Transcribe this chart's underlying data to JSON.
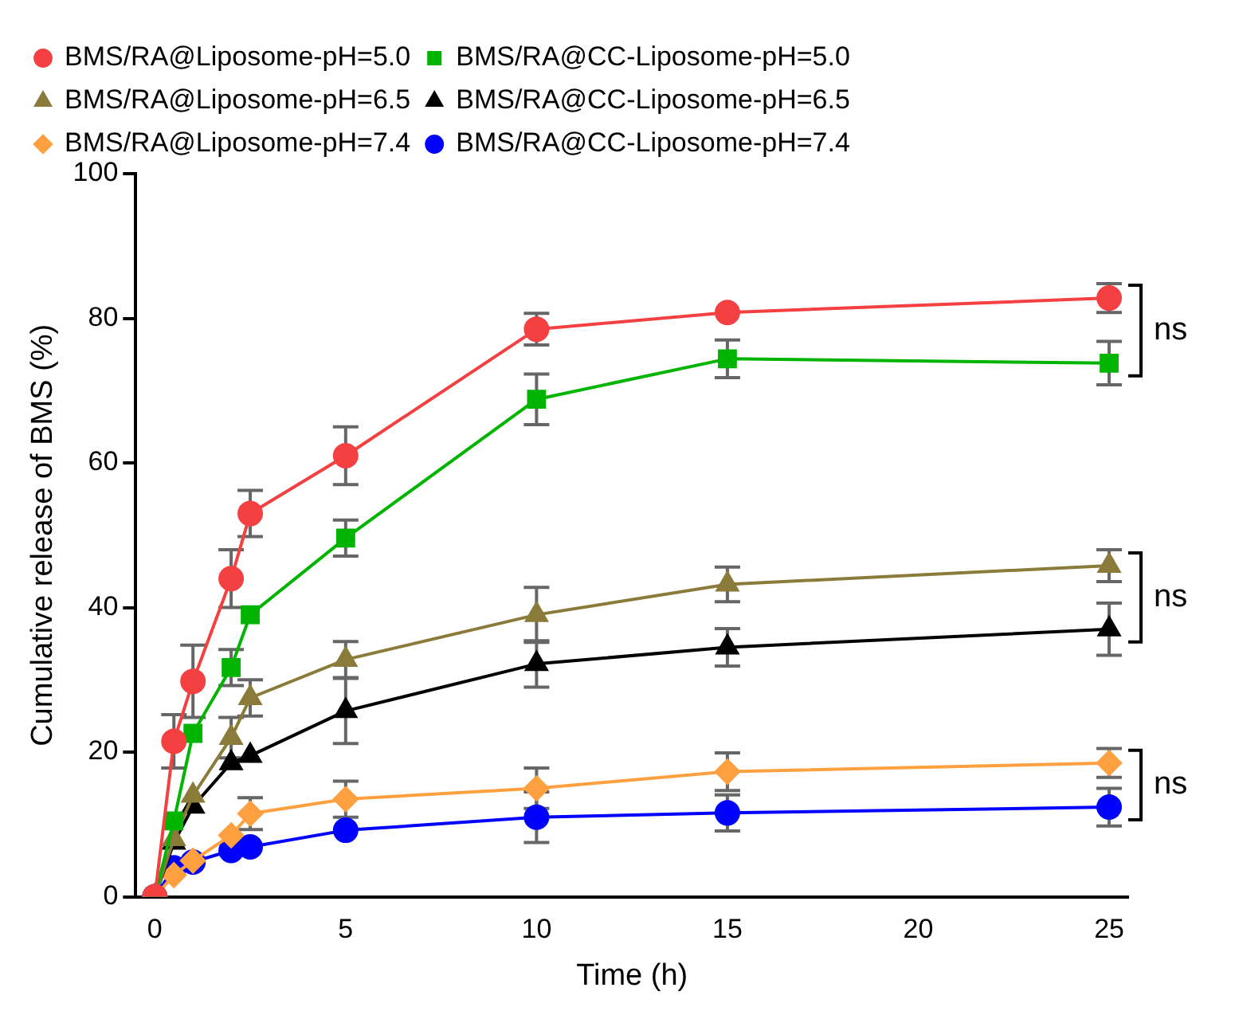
{
  "chart_data": {
    "type": "line",
    "xlabel": "Time (h)",
    "ylabel": "Cumulative release of BMS (%)",
    "x": [
      0,
      0.5,
      1,
      2,
      2.5,
      5,
      10,
      15,
      25
    ],
    "xlim": [
      -0.5,
      25.5
    ],
    "xticks": [
      0,
      5,
      10,
      15,
      20,
      25
    ],
    "ylim": [
      0,
      100
    ],
    "yticks": [
      0,
      20,
      40,
      60,
      80,
      100
    ],
    "grid": false,
    "legend": "top",
    "line_style": "solid",
    "series": [
      {
        "name": "BMS/RA@Liposome-pH=5.0",
        "color": "#f44040",
        "marker": "circle",
        "values": [
          0,
          21.5,
          29.8,
          44,
          53,
          61,
          78.5,
          80.8,
          82.8
        ],
        "errors": [
          null,
          3.7,
          5,
          4,
          3.2,
          4,
          2.2,
          null,
          2
        ]
      },
      {
        "name": "BMS/RA@CC-Liposome-pH=5.0",
        "color": "#00b400",
        "marker": "square",
        "values": [
          0,
          10.5,
          22.6,
          31.7,
          39,
          49.6,
          68.8,
          74.4,
          73.8
        ],
        "errors": [
          null,
          null,
          null,
          2.5,
          null,
          2.5,
          3.5,
          2.6,
          3
        ]
      },
      {
        "name": "BMS/RA@Liposome-pH=6.5",
        "color": "#8b7b3a",
        "marker": "triangle",
        "values": [
          0,
          8,
          14,
          22,
          27.5,
          32.8,
          39,
          43.2,
          45.8
        ],
        "errors": [
          null,
          null,
          null,
          2.8,
          2.5,
          2.5,
          3.8,
          2.4,
          2.2
        ]
      },
      {
        "name": "BMS/RA@CC-Liposome-pH=6.5",
        "color": "#000000",
        "marker": "triangle",
        "values": [
          0,
          7.5,
          12.5,
          18.5,
          19.5,
          25.7,
          32.2,
          34.5,
          37
        ],
        "errors": [
          null,
          null,
          null,
          null,
          null,
          4.5,
          3.2,
          2.6,
          3.6
        ]
      },
      {
        "name": "BMS/RA@Liposome-pH=7.4",
        "color": "#ffa040",
        "marker": "diamond",
        "values": [
          0,
          3,
          5,
          8.5,
          11.5,
          13.5,
          15,
          17.3,
          18.5
        ],
        "errors": [
          null,
          null,
          null,
          null,
          2.2,
          2.5,
          2.8,
          2.6,
          2
        ]
      },
      {
        "name": "BMS/RA@CC-Liposome-pH=7.4",
        "color": "#0000ff",
        "marker": "circle",
        "values": [
          0,
          4,
          4.8,
          6.4,
          6.9,
          9.2,
          11,
          11.6,
          12.4
        ],
        "errors": [
          null,
          null,
          null,
          null,
          null,
          null,
          3.5,
          2.5,
          2.6
        ]
      }
    ],
    "annotations": [
      "ns",
      "ns",
      "ns"
    ]
  }
}
